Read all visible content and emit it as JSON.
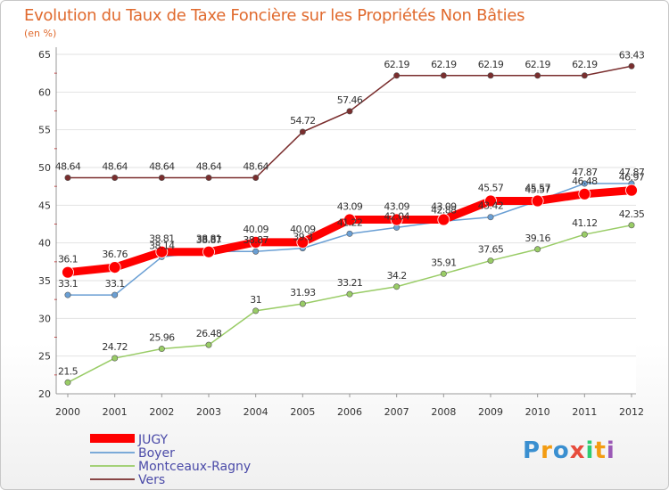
{
  "chart_data": {
    "type": "line",
    "title": "Evolution du Taux de Taxe Foncière sur les Propriétés Non Bâties",
    "subtitle": "(en %)",
    "categories": [
      "2000",
      "2001",
      "2002",
      "2003",
      "2004",
      "2005",
      "2006",
      "2007",
      "2008",
      "2009",
      "2010",
      "2011",
      "2012"
    ],
    "ylim": [
      20,
      65
    ],
    "yticks": [
      20,
      25,
      30,
      35,
      40,
      45,
      50,
      55,
      60,
      65
    ],
    "grid": "horizontal",
    "legend_position": "bottom-left",
    "series": [
      {
        "name": "JUGY",
        "color": "#ff0000",
        "values": [
          36.1,
          36.76,
          38.81,
          38.81,
          40.09,
          40.09,
          43.09,
          43.09,
          43.09,
          45.57,
          45.57,
          46.48,
          46.97
        ],
        "labels": [
          "36.1",
          "36.76",
          "38.81",
          "38.81",
          "40.09",
          "40.09",
          "43.09",
          "43.09",
          "43.09",
          "45.57",
          "45.57",
          "46.48",
          "46.97"
        ]
      },
      {
        "name": "Boyer",
        "color": "#6a9fd4",
        "values": [
          33.1,
          33.1,
          38.14,
          38.87,
          38.87,
          39.3,
          41.22,
          42.04,
          42.88,
          43.42,
          45.57,
          47.87,
          47.87
        ],
        "labels": [
          "33.1",
          "33.1",
          "38.14",
          "38.87",
          "38.87",
          "39.3",
          "41.22",
          "42.04",
          "42.88",
          "43.42",
          "45.57",
          "47.87",
          "47.87"
        ]
      },
      {
        "name": "Montceaux-Ragny",
        "color": "#99cc66",
        "values": [
          21.5,
          24.72,
          25.96,
          26.48,
          31,
          31.93,
          33.21,
          34.2,
          35.91,
          37.65,
          39.16,
          41.12,
          42.35
        ],
        "labels": [
          "21.5",
          "24.72",
          "25.96",
          "26.48",
          "31",
          "31.93",
          "33.21",
          "34.2",
          "35.91",
          "37.65",
          "39.16",
          "41.12",
          "42.35"
        ]
      },
      {
        "name": "Vers",
        "color": "#7a2e2e",
        "values": [
          48.64,
          48.64,
          48.64,
          48.64,
          48.64,
          54.72,
          57.46,
          62.19,
          62.19,
          62.19,
          62.19,
          62.19,
          63.43
        ],
        "labels": [
          "48.64",
          "48.64",
          "48.64",
          "48.64",
          "48.64",
          "54.72",
          "57.46",
          "62.19",
          "62.19",
          "62.19",
          "62.19",
          "62.19",
          "63.43"
        ]
      }
    ]
  },
  "logo": {
    "letters": [
      "P",
      "r",
      "o",
      "x",
      "i",
      "t",
      "i"
    ],
    "colors": [
      "#3a8fd0",
      "#f39c12",
      "#3a8fd0",
      "#e74c3c",
      "#2ecc71",
      "#f39c12",
      "#9b59b6"
    ]
  }
}
